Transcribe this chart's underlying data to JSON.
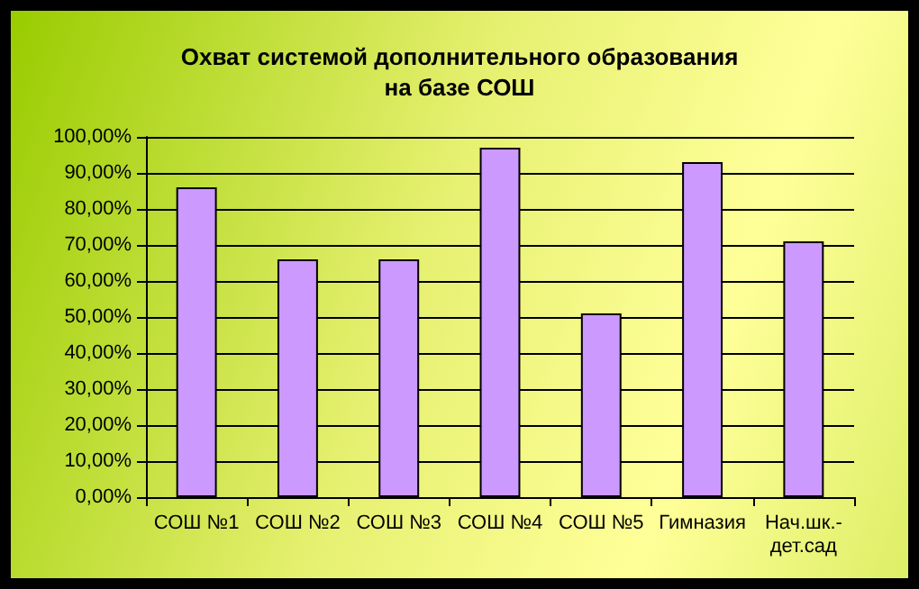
{
  "chart_data": {
    "type": "bar",
    "title": "Охват системой дополнительного образования\nна базе СОШ",
    "categories": [
      "СОШ №1",
      "СОШ №2",
      "СОШ №3",
      "СОШ №4",
      "СОШ №5",
      "Гимназия",
      "Нач.шк.-\nдет.сад"
    ],
    "values": [
      86,
      66,
      66,
      97,
      51,
      93,
      71
    ],
    "color": "#cc99ff",
    "ylim": [
      0,
      100
    ],
    "yticks": [
      {
        "value": 0,
        "label": "0,00%"
      },
      {
        "value": 10,
        "label": "10,00%"
      },
      {
        "value": 20,
        "label": "20,00%"
      },
      {
        "value": 30,
        "label": "30,00%"
      },
      {
        "value": 40,
        "label": "40,00%"
      },
      {
        "value": 50,
        "label": "50,00%"
      },
      {
        "value": 60,
        "label": "60,00%"
      },
      {
        "value": 70,
        "label": "70,00%"
      },
      {
        "value": 80,
        "label": "80,00%"
      },
      {
        "value": 90,
        "label": "90,00%"
      },
      {
        "value": 100,
        "label": "100,00%"
      }
    ],
    "grid": "y"
  }
}
